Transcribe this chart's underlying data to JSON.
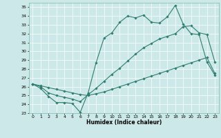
{
  "xlabel": "Humidex (Indice chaleur)",
  "bg_color": "#cce8e8",
  "line_color": "#2e7d6e",
  "xlim": [
    -0.5,
    23.5
  ],
  "ylim": [
    23,
    35.5
  ],
  "xticks": [
    0,
    1,
    2,
    3,
    4,
    5,
    6,
    7,
    8,
    9,
    10,
    11,
    12,
    13,
    14,
    15,
    16,
    17,
    18,
    19,
    20,
    21,
    22,
    23
  ],
  "yticks": [
    23,
    24,
    25,
    26,
    27,
    28,
    29,
    30,
    31,
    32,
    33,
    34,
    35
  ],
  "line1_x": [
    0,
    1,
    2,
    3,
    4,
    5,
    6,
    7,
    8,
    9,
    10,
    11,
    12,
    13,
    14,
    15,
    16,
    17,
    18,
    19,
    20,
    21,
    22,
    23
  ],
  "line1_y": [
    26.3,
    25.8,
    24.9,
    24.2,
    24.2,
    24.1,
    23.1,
    25.3,
    28.7,
    31.5,
    32.1,
    33.3,
    34.0,
    33.8,
    34.1,
    33.3,
    33.2,
    33.9,
    35.2,
    33.1,
    32.0,
    31.9,
    28.8,
    27.3
  ],
  "line2_x": [
    0,
    1,
    2,
    3,
    4,
    5,
    6,
    7,
    8,
    9,
    10,
    11,
    12,
    13,
    14,
    15,
    16,
    17,
    18,
    19,
    20,
    21,
    22,
    23
  ],
  "line2_y": [
    26.3,
    26.0,
    25.3,
    25.0,
    24.8,
    24.6,
    24.3,
    25.1,
    25.8,
    26.6,
    27.4,
    28.1,
    28.9,
    29.7,
    30.4,
    30.9,
    31.4,
    31.7,
    32.0,
    32.8,
    32.9,
    32.1,
    31.9,
    28.8
  ],
  "line3_x": [
    0,
    1,
    2,
    3,
    4,
    5,
    6,
    7,
    8,
    9,
    10,
    11,
    12,
    13,
    14,
    15,
    16,
    17,
    18,
    19,
    20,
    21,
    22,
    23
  ],
  "line3_y": [
    26.3,
    26.1,
    25.9,
    25.7,
    25.5,
    25.3,
    25.1,
    25.0,
    25.2,
    25.4,
    25.7,
    26.0,
    26.3,
    26.6,
    26.9,
    27.2,
    27.5,
    27.8,
    28.1,
    28.4,
    28.7,
    29.0,
    29.3,
    27.5
  ]
}
